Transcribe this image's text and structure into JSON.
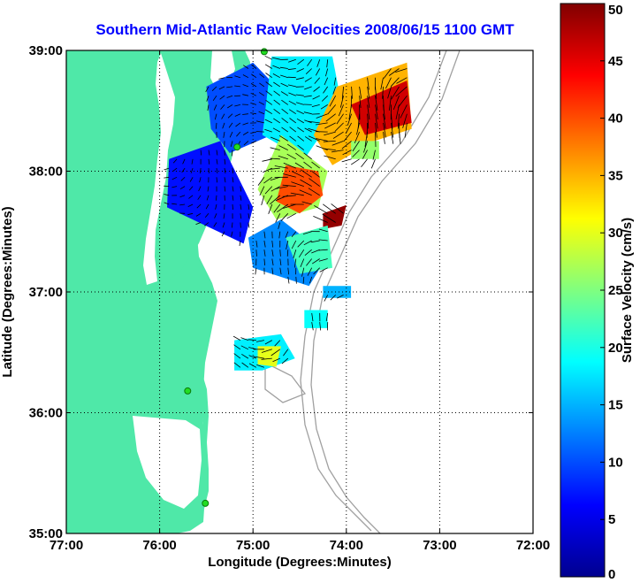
{
  "chart_data": {
    "type": "heatmap",
    "title": "Southern Mid-Atlantic Raw Velocities 2008/06/15 1100 GMT",
    "xlabel": "Longitude (Degrees:Minutes)",
    "ylabel": "Latitude (Degrees:Minutes)",
    "xlim": [
      -77,
      -72
    ],
    "ylim": [
      35,
      39
    ],
    "x_ticks": [
      {
        "value": -77,
        "label": "77:00"
      },
      {
        "value": -76,
        "label": "76:00"
      },
      {
        "value": -75,
        "label": "75:00"
      },
      {
        "value": -74,
        "label": "74:00"
      },
      {
        "value": -73,
        "label": "73:00"
      },
      {
        "value": -72,
        "label": "72:00"
      }
    ],
    "y_ticks": [
      {
        "value": 35,
        "label": "35:00"
      },
      {
        "value": 36,
        "label": "36:00"
      },
      {
        "value": 37,
        "label": "37:00"
      },
      {
        "value": 38,
        "label": "38:00"
      },
      {
        "value": 39,
        "label": "39:00"
      }
    ],
    "grid": true,
    "colorbar": {
      "label": "Surface Velocity (cm/s)",
      "range": [
        0,
        50
      ],
      "ticks": [
        "0",
        "5",
        "10",
        "15",
        "20",
        "25",
        "30",
        "35",
        "40",
        "45",
        "50"
      ],
      "colormap": "jet"
    },
    "land_color": "#4fe8a8",
    "station_color": "#22dd22",
    "stations": [
      {
        "lon": -74.88,
        "lat": 38.99
      },
      {
        "lon": -75.17,
        "lat": 38.2
      },
      {
        "lon": -75.7,
        "lat": 36.18
      },
      {
        "lon": -75.51,
        "lat": 35.25
      }
    ],
    "velocity_regions": [
      {
        "poly": [
          [
            -75.92,
            37.7
          ],
          [
            -75.1,
            37.4
          ],
          [
            -75.0,
            37.7
          ],
          [
            -75.35,
            38.25
          ],
          [
            -75.9,
            38.1
          ]
        ],
        "speed": 7
      },
      {
        "poly": [
          [
            -75.5,
            38.7
          ],
          [
            -75.0,
            38.9
          ],
          [
            -74.75,
            38.7
          ],
          [
            -74.8,
            38.3
          ],
          [
            -75.25,
            38.15
          ],
          [
            -75.45,
            38.35
          ]
        ],
        "speed": 10
      },
      {
        "poly": [
          [
            -75.0,
            37.2
          ],
          [
            -74.4,
            37.05
          ],
          [
            -74.2,
            37.3
          ],
          [
            -74.7,
            37.6
          ],
          [
            -75.05,
            37.45
          ]
        ],
        "speed": 13
      },
      {
        "poly": [
          [
            -74.8,
            38.95
          ],
          [
            -74.15,
            38.95
          ],
          [
            -74.05,
            38.55
          ],
          [
            -74.45,
            38.1
          ],
          [
            -74.9,
            38.3
          ]
        ],
        "speed": 18
      },
      {
        "poly": [
          [
            -74.7,
            38.3
          ],
          [
            -74.2,
            38.0
          ],
          [
            -74.3,
            37.7
          ],
          [
            -74.75,
            37.6
          ],
          [
            -74.95,
            37.85
          ]
        ],
        "speed": 27
      },
      {
        "poly": [
          [
            -74.1,
            38.7
          ],
          [
            -73.35,
            38.9
          ],
          [
            -73.3,
            38.35
          ],
          [
            -73.7,
            38.25
          ],
          [
            -74.15,
            38.05
          ],
          [
            -74.35,
            38.3
          ]
        ],
        "speed": 35
      },
      {
        "poly": [
          [
            -73.95,
            38.55
          ],
          [
            -73.35,
            38.75
          ],
          [
            -73.3,
            38.4
          ],
          [
            -73.8,
            38.3
          ]
        ],
        "speed": 46
      },
      {
        "poly": [
          [
            -74.65,
            38.05
          ],
          [
            -74.3,
            38.0
          ],
          [
            -74.25,
            37.8
          ],
          [
            -74.5,
            37.65
          ],
          [
            -74.75,
            37.75
          ]
        ],
        "speed": 40
      },
      {
        "poly": [
          [
            -74.25,
            37.65
          ],
          [
            -74.0,
            37.72
          ],
          [
            -74.05,
            37.55
          ],
          [
            -74.25,
            37.52
          ]
        ],
        "speed": 49
      },
      {
        "poly": [
          [
            -74.65,
            37.45
          ],
          [
            -74.2,
            37.55
          ],
          [
            -74.15,
            37.2
          ],
          [
            -74.5,
            37.15
          ]
        ],
        "speed": 22
      },
      {
        "poly": [
          [
            -75.2,
            36.6
          ],
          [
            -74.7,
            36.65
          ],
          [
            -74.55,
            36.45
          ],
          [
            -74.9,
            36.35
          ],
          [
            -75.2,
            36.35
          ]
        ],
        "speed": 18
      },
      {
        "poly": [
          [
            -74.95,
            36.55
          ],
          [
            -74.7,
            36.55
          ],
          [
            -74.75,
            36.38
          ],
          [
            -74.95,
            36.4
          ]
        ],
        "speed": 30
      },
      {
        "poly": [
          [
            -74.25,
            37.05
          ],
          [
            -73.95,
            37.05
          ],
          [
            -73.95,
            36.95
          ],
          [
            -74.25,
            36.95
          ]
        ],
        "speed": 15
      },
      {
        "poly": [
          [
            -74.45,
            36.85
          ],
          [
            -74.2,
            36.85
          ],
          [
            -74.2,
            36.7
          ],
          [
            -74.45,
            36.7
          ]
        ],
        "speed": 19
      },
      {
        "poly": [
          [
            -73.95,
            38.25
          ],
          [
            -73.65,
            38.25
          ],
          [
            -73.65,
            38.1
          ],
          [
            -73.95,
            38.1
          ]
        ],
        "speed": 26
      }
    ]
  }
}
